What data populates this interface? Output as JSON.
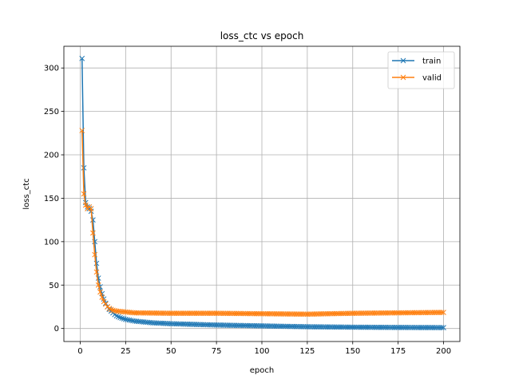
{
  "chart_data": {
    "type": "line",
    "title": "loss_ctc vs epoch",
    "xlabel": "epoch",
    "ylabel": "loss_ctc",
    "xlim": [
      -9,
      209
    ],
    "ylim": [
      -15,
      325
    ],
    "xticks": [
      0,
      25,
      50,
      75,
      100,
      125,
      150,
      175,
      200
    ],
    "yticks": [
      0,
      50,
      100,
      150,
      200,
      250,
      300
    ],
    "grid": true,
    "legend_position": "top-right",
    "marker": "x",
    "series": [
      {
        "name": "train",
        "color": "#1f77b4",
        "points": [
          [
            1,
            311
          ],
          [
            2,
            185
          ],
          [
            3,
            145
          ],
          [
            4,
            140
          ],
          [
            5,
            138
          ],
          [
            6,
            135
          ],
          [
            7,
            125
          ],
          [
            8,
            100
          ],
          [
            9,
            75
          ],
          [
            10,
            58
          ],
          [
            11,
            48
          ],
          [
            12,
            40
          ],
          [
            13,
            34
          ],
          [
            14,
            29
          ],
          [
            15,
            25
          ],
          [
            16,
            22
          ],
          [
            17,
            20
          ],
          [
            18,
            18
          ],
          [
            19,
            16
          ],
          [
            20,
            14.5
          ],
          [
            22,
            12.5
          ],
          [
            25,
            10.5
          ],
          [
            30,
            8.5
          ],
          [
            40,
            6.5
          ],
          [
            50,
            5.5
          ],
          [
            75,
            4
          ],
          [
            100,
            3
          ],
          [
            125,
            2
          ],
          [
            150,
            1.5
          ],
          [
            175,
            1.2
          ],
          [
            200,
            1
          ]
        ]
      },
      {
        "name": "valid",
        "color": "#ff7f0e",
        "points": [
          [
            1,
            228
          ],
          [
            2,
            155
          ],
          [
            3,
            142
          ],
          [
            4,
            138
          ],
          [
            5,
            140
          ],
          [
            6,
            138
          ],
          [
            7,
            110
          ],
          [
            8,
            85
          ],
          [
            9,
            65
          ],
          [
            10,
            50
          ],
          [
            11,
            42
          ],
          [
            12,
            36
          ],
          [
            13,
            31
          ],
          [
            14,
            28
          ],
          [
            15,
            25
          ],
          [
            16,
            23
          ],
          [
            17,
            22
          ],
          [
            18,
            21
          ],
          [
            19,
            20.5
          ],
          [
            20,
            20
          ],
          [
            25,
            19
          ],
          [
            30,
            18
          ],
          [
            50,
            17.5
          ],
          [
            75,
            17.5
          ],
          [
            100,
            17
          ],
          [
            125,
            16.5
          ],
          [
            150,
            17.5
          ],
          [
            175,
            18
          ],
          [
            200,
            18.5
          ]
        ]
      }
    ]
  }
}
